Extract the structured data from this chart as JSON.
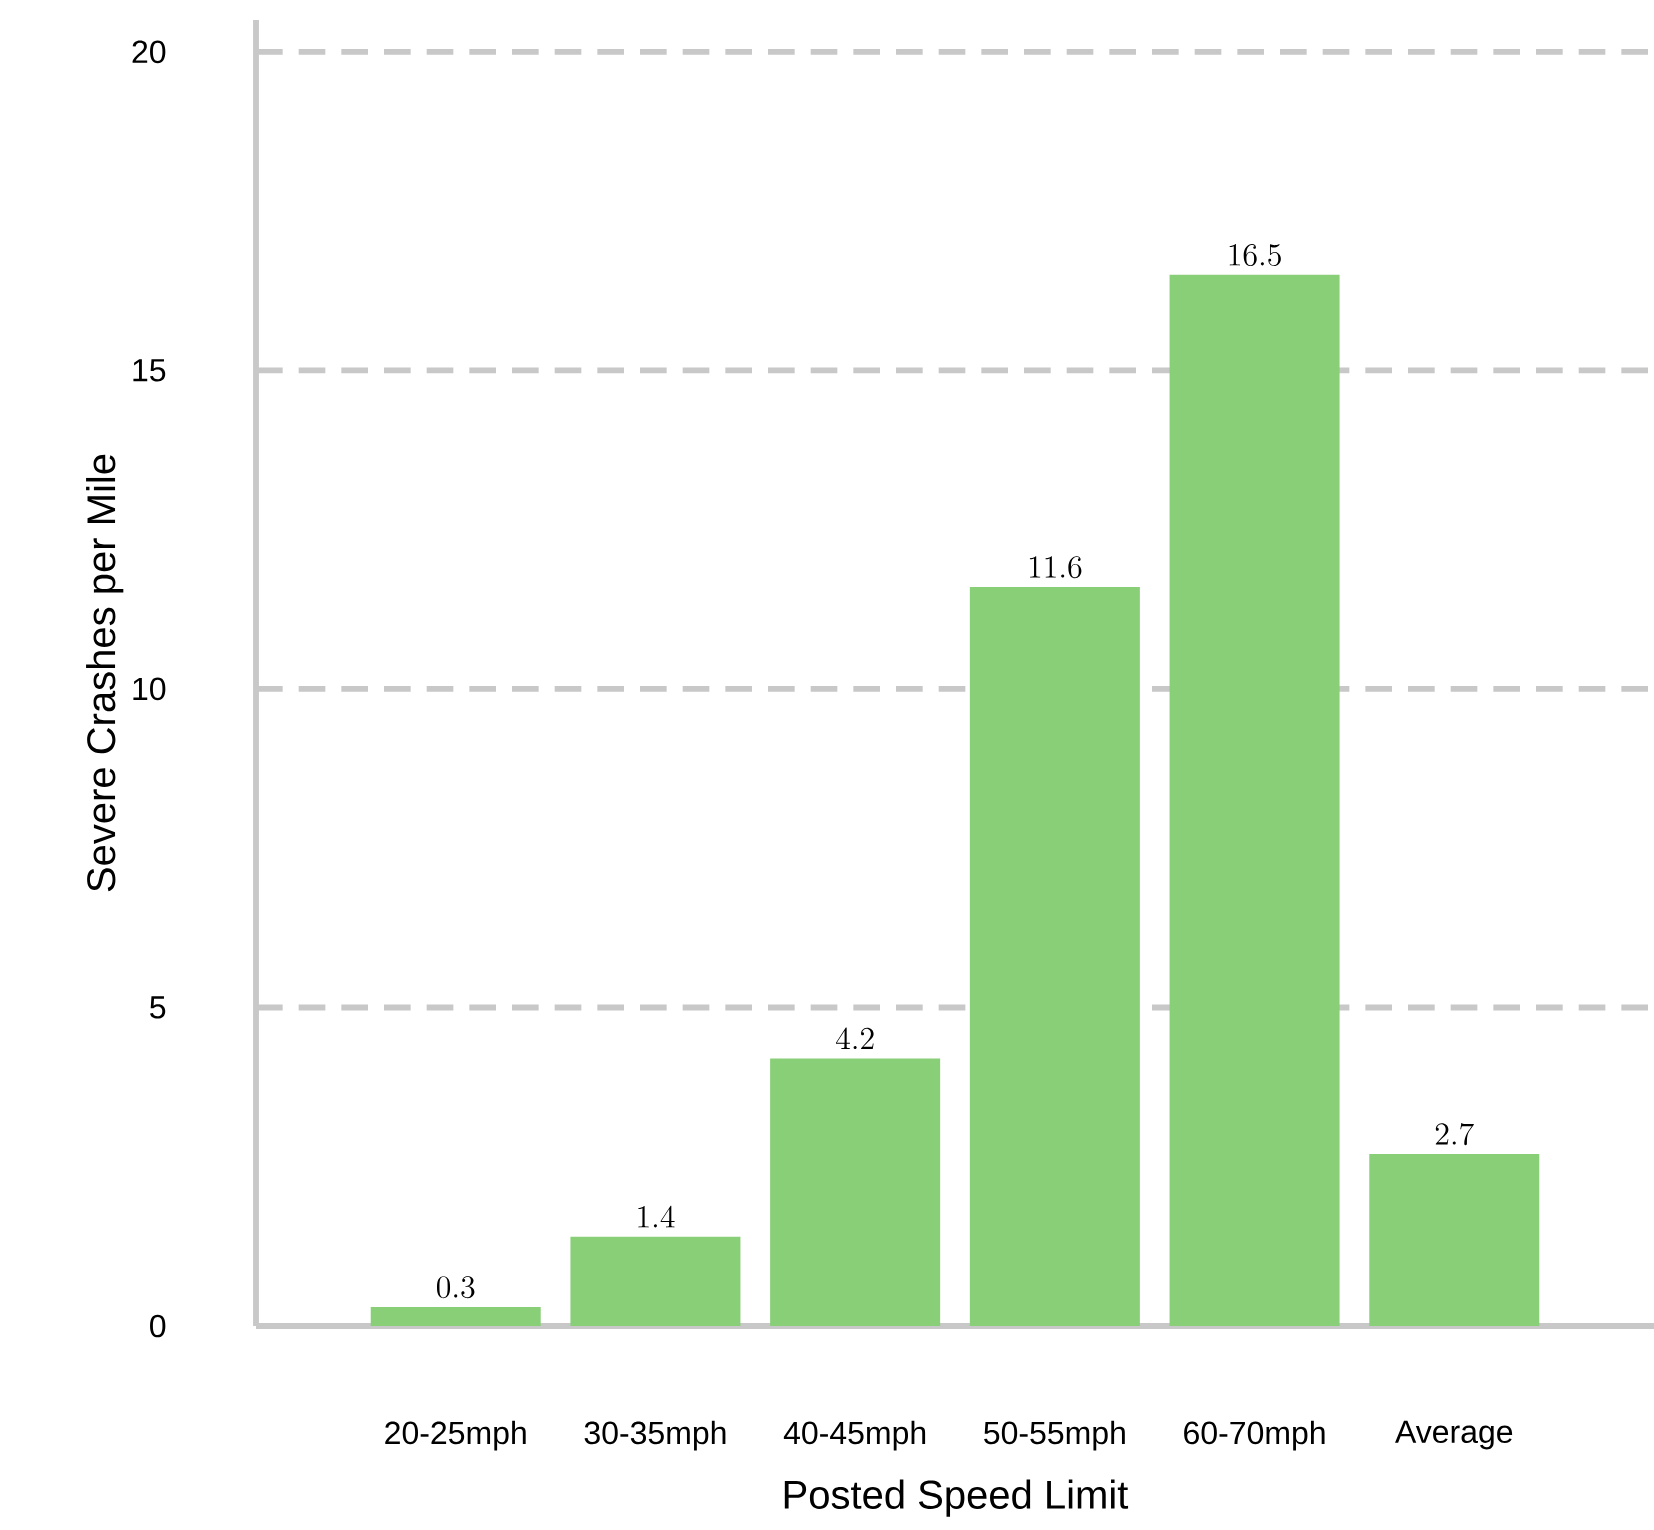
{
  "chart_data": {
    "type": "bar",
    "xlabel": "Posted Speed Limit",
    "ylabel": "Severe Crashes per Mile",
    "categories": [
      "20-25mph",
      "30-35mph",
      "40-45mph",
      "50-55mph",
      "60-70mph",
      "Average"
    ],
    "values": [
      0.3,
      1.4,
      4.2,
      11.6,
      16.5,
      2.7
    ],
    "color": "#88cf78",
    "ylim": [
      0,
      20.5
    ],
    "yticks": [
      0,
      5,
      10,
      15,
      20
    ],
    "grid": "y",
    "data_labels": true
  }
}
